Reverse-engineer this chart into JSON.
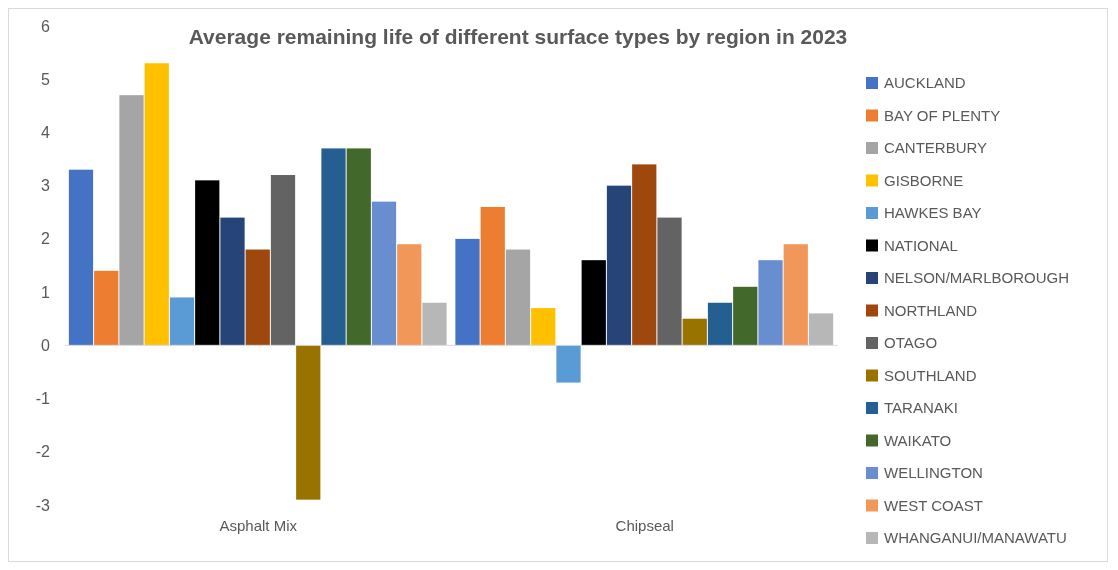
{
  "chart_data": {
    "type": "bar",
    "title": "Average remaining life of different surface types by region in 2023",
    "categories": [
      "Asphalt Mix",
      "Chipseal"
    ],
    "ylim": [
      -3,
      6
    ],
    "yticks": [
      -3,
      -2,
      -1,
      0,
      1,
      2,
      3,
      4,
      5,
      6
    ],
    "legend": "right",
    "series": [
      {
        "name": "AUCKLAND",
        "color": "#4472c4",
        "values": [
          3.3,
          2.0
        ]
      },
      {
        "name": "BAY OF PLENTY",
        "color": "#ed7d31",
        "values": [
          1.4,
          2.6
        ]
      },
      {
        "name": "CANTERBURY",
        "color": "#a5a5a5",
        "values": [
          4.7,
          1.8
        ]
      },
      {
        "name": "GISBORNE",
        "color": "#ffc000",
        "values": [
          5.3,
          0.7
        ]
      },
      {
        "name": "HAWKES BAY",
        "color": "#5b9bd5",
        "values": [
          0.9,
          -0.7
        ]
      },
      {
        "name": "NATIONAL",
        "color": "#000000",
        "values": [
          3.1,
          1.6
        ]
      },
      {
        "name": "NELSON/MARLBOROUGH",
        "color": "#264478",
        "values": [
          2.4,
          3.0
        ]
      },
      {
        "name": "NORTHLAND",
        "color": "#9e480e",
        "values": [
          1.8,
          3.4
        ]
      },
      {
        "name": "OTAGO",
        "color": "#636363",
        "values": [
          3.2,
          2.4
        ]
      },
      {
        "name": "SOUTHLAND",
        "color": "#997300",
        "values": [
          -2.9,
          0.5
        ]
      },
      {
        "name": "TARANAKI",
        "color": "#255e91",
        "values": [
          3.7,
          0.8
        ]
      },
      {
        "name": "WAIKATO",
        "color": "#43682b",
        "values": [
          3.7,
          1.1
        ]
      },
      {
        "name": "WELLINGTON",
        "color": "#698ed0",
        "values": [
          2.7,
          1.6
        ]
      },
      {
        "name": "WEST COAST",
        "color": "#f1975a",
        "values": [
          1.9,
          1.9
        ]
      },
      {
        "name": "WHANGANUI/MANAWATU",
        "color": "#b7b7b7",
        "values": [
          0.8,
          0.6
        ]
      }
    ]
  }
}
